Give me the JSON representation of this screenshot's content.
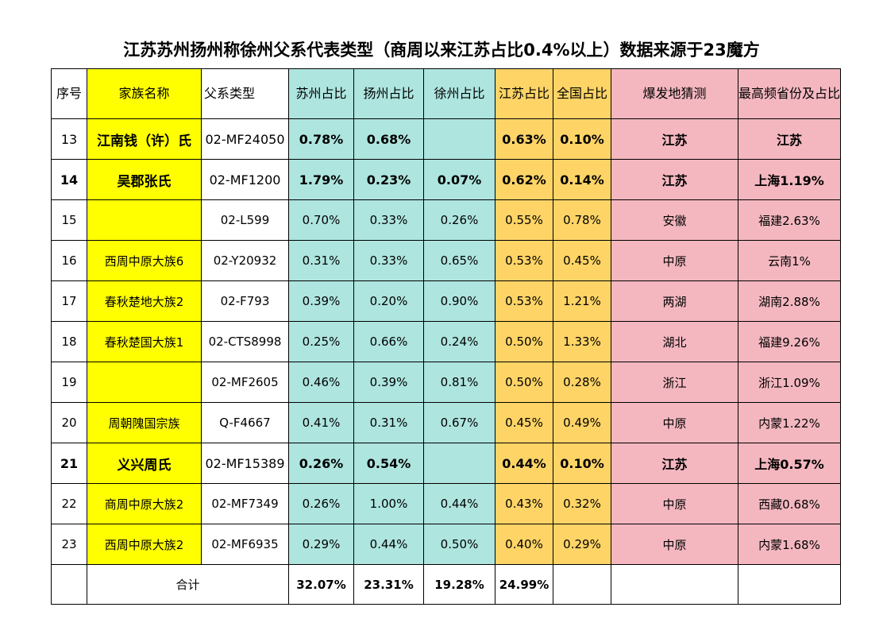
{
  "title": "江苏苏州扬州称徐州父系代表类型（商周以来江苏占比0.4%以上）数据来源于23魔方",
  "colors": {
    "family_column": "#ffff00",
    "city_columns": "#aee5df",
    "province_columns": "#fed466",
    "origin_columns": "#f4b7c0"
  },
  "headers": {
    "seq": "序号",
    "family": "家族名称",
    "type": "父系类型",
    "suzhou": "苏州占比",
    "yangzhou": "扬州占比",
    "xuzhou": "徐州占比",
    "jiangsu": "江苏占比",
    "national": "全国占比",
    "origin": "爆发地猜测",
    "top_province": "最高频省份及占比"
  },
  "rows": [
    {
      "seq": "13",
      "family": "江南钱（许）氏",
      "type": "02-MF24050",
      "suzhou": "0.78%",
      "yangzhou": "0.68%",
      "xuzhou": "",
      "jiangsu": "0.63%",
      "national": "0.10%",
      "origin": "江苏",
      "top_province": "江苏"
    },
    {
      "seq": "14",
      "family": "吴郡张氏",
      "type": "02-MF1200",
      "suzhou": "1.79%",
      "yangzhou": "0.23%",
      "xuzhou": "0.07%",
      "jiangsu": "0.62%",
      "national": "0.14%",
      "origin": "江苏",
      "top_province": "上海1.19%"
    },
    {
      "seq": "15",
      "family": "",
      "type": "02-L599",
      "suzhou": "0.70%",
      "yangzhou": "0.33%",
      "xuzhou": "0.26%",
      "jiangsu": "0.55%",
      "national": "0.78%",
      "origin": "安徽",
      "top_province": "福建2.63%"
    },
    {
      "seq": "16",
      "family": "西周中原大族6",
      "type": "02-Y20932",
      "suzhou": "0.31%",
      "yangzhou": "0.33%",
      "xuzhou": "0.65%",
      "jiangsu": "0.53%",
      "national": "0.45%",
      "origin": "中原",
      "top_province": "云南1%"
    },
    {
      "seq": "17",
      "family": "春秋楚地大族2",
      "type": "02-F793",
      "suzhou": "0.39%",
      "yangzhou": "0.20%",
      "xuzhou": "0.90%",
      "jiangsu": "0.53%",
      "national": "1.21%",
      "origin": "两湖",
      "top_province": "湖南2.88%"
    },
    {
      "seq": "18",
      "family": "春秋楚国大族1",
      "type": "02-CTS8998",
      "suzhou": "0.25%",
      "yangzhou": "0.66%",
      "xuzhou": "0.24%",
      "jiangsu": "0.50%",
      "national": "1.33%",
      "origin": "湖北",
      "top_province": "福建9.26%"
    },
    {
      "seq": "19",
      "family": "",
      "type": "02-MF2605",
      "suzhou": "0.46%",
      "yangzhou": "0.39%",
      "xuzhou": "0.81%",
      "jiangsu": "0.50%",
      "national": "0.28%",
      "origin": "浙江",
      "top_province": "浙江1.09%"
    },
    {
      "seq": "20",
      "family": "周朝隗国宗族",
      "type": "Q-F4667",
      "suzhou": "0.41%",
      "yangzhou": "0.31%",
      "xuzhou": "0.67%",
      "jiangsu": "0.45%",
      "national": "0.49%",
      "origin": "中原",
      "top_province": "内蒙1.22%"
    },
    {
      "seq": "21",
      "family": "义兴周氏",
      "type": "02-MF15389",
      "suzhou": "0.26%",
      "yangzhou": "0.54%",
      "xuzhou": "",
      "jiangsu": "0.44%",
      "national": "0.10%",
      "origin": "江苏",
      "top_province": "上海0.57%"
    },
    {
      "seq": "22",
      "family": "商周中原大族2",
      "type": "02-MF7349",
      "suzhou": "0.26%",
      "yangzhou": "1.00%",
      "xuzhou": "0.44%",
      "jiangsu": "0.43%",
      "national": "0.32%",
      "origin": "中原",
      "top_province": "西藏0.68%"
    },
    {
      "seq": "23",
      "family": "西周中原大族2",
      "type": "02-MF6935",
      "suzhou": "0.29%",
      "yangzhou": "0.44%",
      "xuzhou": "0.50%",
      "jiangsu": "0.40%",
      "national": "0.29%",
      "origin": "中原",
      "top_province": "内蒙1.68%"
    }
  ],
  "total": {
    "label": "合计",
    "suzhou": "32.07%",
    "yangzhou": "23.31%",
    "xuzhou": "19.28%",
    "jiangsu": "24.99%"
  }
}
